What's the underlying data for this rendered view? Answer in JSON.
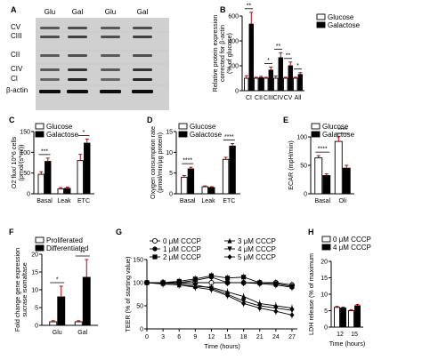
{
  "figure": {
    "panel_labels": [
      "A",
      "B",
      "C",
      "D",
      "E",
      "F",
      "G",
      "H"
    ]
  },
  "blot": {
    "lane_labels": [
      "Glu",
      "Gal",
      "Glu",
      "Gal"
    ],
    "band_labels": [
      "CV",
      "CIII",
      "CII",
      "CIV",
      "CI",
      "β-actin"
    ]
  },
  "legends": {
    "glu_gal": [
      "Glucose",
      "Galactose"
    ],
    "prolif": [
      "Proliferated",
      "Differentiated"
    ],
    "cccp_g": [
      "0 μM CCCP",
      "1 μM CCCP",
      "2 μM CCCP",
      "3 μM CCCP",
      "4 μM CCCP",
      "5 μM CCCP"
    ],
    "cccp_h": [
      "0 μM CCCP",
      "4 μM CCCP"
    ]
  },
  "colors": {
    "open": "#ffffff",
    "filled": "#000000",
    "error": "#c00000",
    "axis": "#000000"
  },
  "chart_data": [
    {
      "panel": "B",
      "type": "bar",
      "ylabel": "Relative protein expression corrected for β-actin (% of glucose)",
      "ylim": [
        0,
        600
      ],
      "yticks": [
        0,
        200,
        400,
        600
      ],
      "categories": [
        "CI",
        "CII",
        "CIII",
        "CIV",
        "CV",
        "All"
      ],
      "series": [
        {
          "name": "Glucose",
          "values": [
            100,
            100,
            100,
            100,
            100,
            100
          ],
          "errors": [
            20,
            8,
            8,
            18,
            8,
            8
          ]
        },
        {
          "name": "Galactose",
          "values": [
            535,
            105,
            165,
            265,
            200,
            130
          ],
          "errors": [
            95,
            10,
            25,
            40,
            30,
            15
          ]
        }
      ],
      "significance": [
        "**",
        "",
        "*",
        "**",
        "**",
        "*"
      ]
    },
    {
      "panel": "C",
      "type": "bar",
      "ylabel": "O2 flux/ 10^6 cells (pmol/(s*ml))",
      "ylim": [
        0,
        150
      ],
      "yticks": [
        0,
        50,
        100,
        150
      ],
      "categories": [
        "Basal",
        "Leak",
        "ETC"
      ],
      "series": [
        {
          "name": "Glucose",
          "values": [
            47,
            12,
            80
          ],
          "errors": [
            6,
            3,
            15
          ]
        },
        {
          "name": "Galactose",
          "values": [
            78,
            13,
            122
          ],
          "errors": [
            8,
            3,
            10
          ]
        }
      ],
      "significance": [
        "***",
        "",
        "*"
      ]
    },
    {
      "panel": "D",
      "type": "bar",
      "ylabel": "Oxygen consumption rate (pmol/min/μg protein)",
      "ylim": [
        0,
        15
      ],
      "yticks": [
        0,
        5,
        10,
        15
      ],
      "categories": [
        "Basal",
        "Leak",
        "ETC"
      ],
      "series": [
        {
          "name": "Glucose",
          "values": [
            4.0,
            1.7,
            8.3
          ],
          "errors": [
            0.4,
            0.2,
            0.5
          ]
        },
        {
          "name": "Galactose",
          "values": [
            6.0,
            1.5,
            11.5
          ],
          "errors": [
            0.4,
            0.2,
            0.6
          ]
        }
      ],
      "significance": [
        "****",
        "",
        "****"
      ]
    },
    {
      "panel": "E",
      "type": "bar",
      "ylabel": "ECAR (mpH/min)",
      "ylim": [
        0,
        100
      ],
      "yticks": [
        0,
        50,
        100
      ],
      "categories": [
        "Basal",
        "Oli"
      ],
      "series": [
        {
          "name": "Glucose",
          "values": [
            63,
            92
          ],
          "errors": [
            4,
            8
          ]
        },
        {
          "name": "Galactose",
          "values": [
            32,
            45
          ],
          "errors": [
            3,
            5
          ]
        }
      ],
      "significance": [
        "****",
        "****"
      ]
    },
    {
      "panel": "F",
      "type": "bar",
      "ylabel": "Fold change gene expression sucrase isomaltase",
      "ylim": [
        0,
        20
      ],
      "yticks": [
        0,
        5,
        10,
        15,
        20
      ],
      "categories": [
        "Glu",
        "Gal"
      ],
      "series": [
        {
          "name": "Proliferated",
          "values": [
            1,
            1
          ],
          "errors": [
            0.3,
            0.3
          ]
        },
        {
          "name": "Differentiated",
          "values": [
            8,
            13.5
          ],
          "errors": [
            3,
            5
          ]
        }
      ],
      "significance": [
        "*",
        "**"
      ]
    },
    {
      "panel": "G",
      "type": "line",
      "xlabel": "Time (hours)",
      "ylabel": "TEER (% of starting value)",
      "ylim": [
        0,
        150
      ],
      "yticks": [
        0,
        50,
        100,
        150
      ],
      "x": [
        0,
        3,
        6,
        9,
        12,
        15,
        18,
        21,
        24,
        27
      ],
      "xticks": [
        0,
        3,
        6,
        9,
        12,
        15,
        18,
        21,
        24,
        27
      ],
      "series": [
        {
          "name": "0 μM CCCP",
          "marker": "circle-open",
          "values": [
            100,
            100,
            100,
            100,
            100,
            100,
            100,
            100,
            100,
            95
          ]
        },
        {
          "name": "1 μM CCCP",
          "marker": "circle-filled",
          "values": [
            100,
            100,
            100,
            105,
            112,
            100,
            100,
            98,
            95,
            90
          ]
        },
        {
          "name": "2 μM CCCP",
          "marker": "square-filled",
          "values": [
            100,
            100,
            103,
            108,
            115,
            110,
            112,
            100,
            98,
            92
          ]
        },
        {
          "name": "3 μM CCCP",
          "marker": "triangle-filled",
          "values": [
            100,
            98,
            95,
            92,
            90,
            80,
            70,
            55,
            50,
            45
          ]
        },
        {
          "name": "4 μM CCCP",
          "marker": "triangle-down-filled",
          "values": [
            100,
            100,
            98,
            95,
            88,
            75,
            60,
            50,
            45,
            40
          ]
        },
        {
          "name": "5 μM CCCP",
          "marker": "diamond-filled",
          "values": [
            100,
            97,
            95,
            90,
            85,
            72,
            55,
            45,
            38,
            30
          ]
        }
      ]
    },
    {
      "panel": "H",
      "type": "bar",
      "xlabel": "Time (hours)",
      "ylabel": "LDH release (% of maximum",
      "ylim": [
        0,
        20
      ],
      "yticks": [
        0,
        5,
        10,
        15,
        20
      ],
      "categories": [
        "12",
        "15"
      ],
      "series": [
        {
          "name": "0 μM CCCP",
          "values": [
            6,
            5
          ],
          "errors": [
            0.3,
            0.3
          ]
        },
        {
          "name": "4 μM CCCP",
          "values": [
            5.8,
            6.5
          ],
          "errors": [
            0.3,
            0.4
          ]
        }
      ]
    }
  ]
}
